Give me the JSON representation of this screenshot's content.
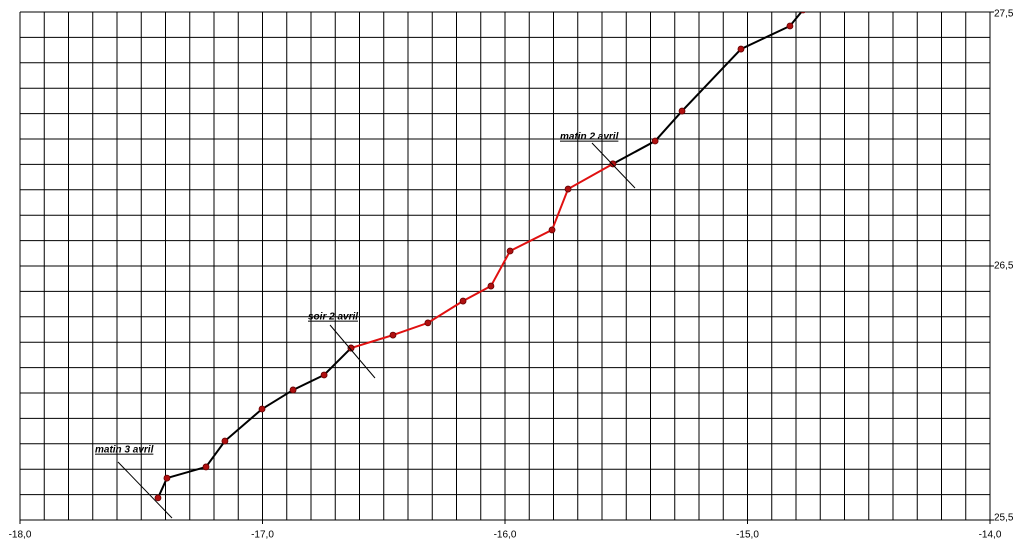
{
  "chart_data": {
    "type": "line",
    "annotations": [
      "matin 3 avril",
      "soir 2 avril",
      "matin 2 avril"
    ],
    "xlim": [
      -18,
      -14
    ],
    "xticks": [
      {
        "value": -18,
        "label": "-18,0"
      },
      {
        "value": -17,
        "label": "-17,0"
      },
      {
        "value": -16,
        "label": "-16,0"
      },
      {
        "value": -15,
        "label": "-15,0"
      },
      {
        "value": -14,
        "label": "-14,0"
      }
    ],
    "ylim": [
      25.5,
      27.5
    ],
    "yticks": [
      {
        "value": 25.5,
        "label": "25,5"
      },
      {
        "value": 26.5,
        "label": "26,5"
      },
      {
        "value": 27.5,
        "label": "27,5"
      }
    ],
    "xgrid": [
      -18,
      -17.9,
      -17.8,
      -17.7,
      -17.6,
      -17.5,
      -17.4,
      -17.3,
      -17.2,
      -17.1,
      -17,
      -16.9,
      -16.8,
      -16.7,
      -16.6,
      -16.5,
      -16.4,
      -16.3,
      -16.2,
      -16.1,
      -16,
      -15.9,
      -15.8,
      -15.7,
      -15.6,
      -15.5,
      -15.4,
      -15.3,
      -15.2,
      -15.1,
      -15,
      -14.9,
      -14.8,
      -14.7,
      -14.6,
      -14.5,
      -14.4,
      -14.3,
      -14.2,
      -14.1,
      -14
    ],
    "ygrid": [
      25.5,
      25.6,
      25.7,
      25.8,
      25.9,
      26,
      26.1,
      26.2,
      26.3,
      26.4,
      26.5,
      26.6,
      26.7,
      26.8,
      26.9,
      27,
      27.1,
      27.2,
      27.3,
      27.4,
      27.5
    ],
    "y_axis_side": "right",
    "marker_color": "#b01010",
    "series": [
      {
        "color": "#000000",
        "x": [
          -17.431,
          -17.394,
          -17.233,
          -17.155,
          -17.002,
          -16.874,
          -16.746,
          -16.635
        ],
        "values": [
          25.587,
          25.665,
          25.709,
          25.811,
          25.937,
          26.012,
          26.071,
          26.177
        ]
      },
      {
        "color": "#e01010",
        "x": [
          -16.635,
          -16.462,
          -16.318,
          -16.173,
          -16.058,
          -15.979,
          -15.806,
          -15.74,
          -15.555
        ],
        "values": [
          26.177,
          26.228,
          26.276,
          26.362,
          26.421,
          26.559,
          26.642,
          26.803,
          26.902
        ]
      },
      {
        "color": "#000000",
        "x": [
          -15.555,
          -15.381,
          -15.27,
          -15.027,
          -14.825,
          -14.771
        ],
        "values": [
          26.902,
          26.992,
          27.11,
          27.354,
          27.445,
          27.508
        ]
      }
    ]
  }
}
